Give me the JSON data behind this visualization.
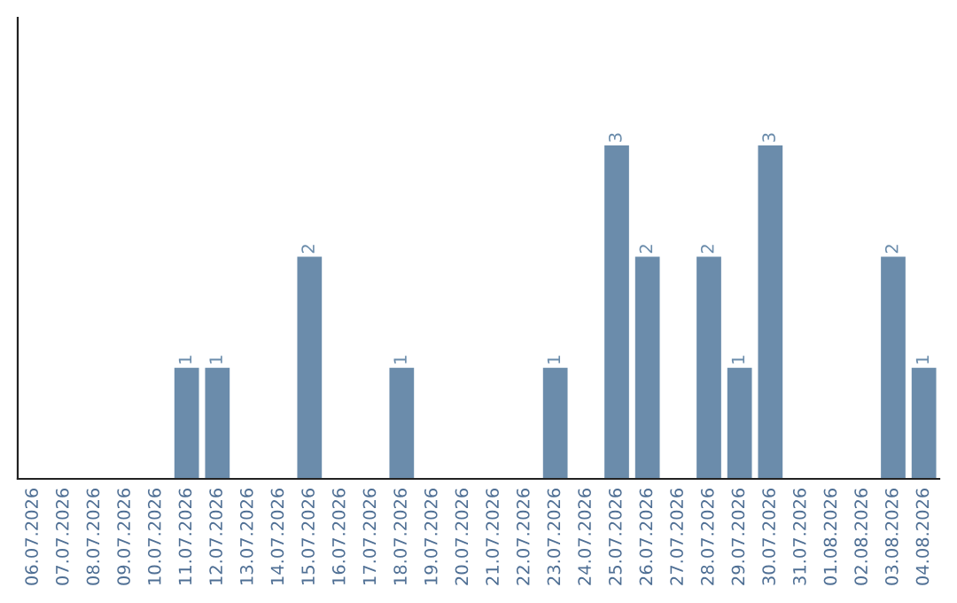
{
  "chart_data": {
    "type": "bar",
    "categories": [
      "06.07.2026",
      "07.07.2026",
      "08.07.2026",
      "09.07.2026",
      "10.07.2026",
      "11.07.2026",
      "12.07.2026",
      "13.07.2026",
      "14.07.2026",
      "15.07.2026",
      "16.07.2026",
      "17.07.2026",
      "18.07.2026",
      "19.07.2026",
      "20.07.2026",
      "21.07.2026",
      "22.07.2026",
      "23.07.2026",
      "24.07.2026",
      "25.07.2026",
      "26.07.2026",
      "27.07.2026",
      "28.07.2026",
      "29.07.2026",
      "30.07.2026",
      "31.07.2026",
      "01.08.2026",
      "02.08.2026",
      "03.08.2026",
      "04.08.2026"
    ],
    "values": [
      0,
      0,
      0,
      0,
      0,
      1,
      1,
      0,
      0,
      2,
      0,
      0,
      1,
      0,
      0,
      0,
      0,
      1,
      0,
      3,
      2,
      0,
      2,
      1,
      3,
      0,
      0,
      0,
      2,
      1
    ],
    "value_labels": [
      null,
      null,
      null,
      null,
      null,
      "1",
      "1",
      null,
      null,
      "2",
      null,
      null,
      "1",
      null,
      null,
      null,
      null,
      "1",
      null,
      "3",
      "2",
      null,
      "2",
      "1",
      "3",
      null,
      null,
      null,
      "2",
      "1"
    ],
    "color": "#6b8cab",
    "ylim": [
      0,
      4.15
    ],
    "tick_labels": "x",
    "grid": false,
    "legend": false
  }
}
